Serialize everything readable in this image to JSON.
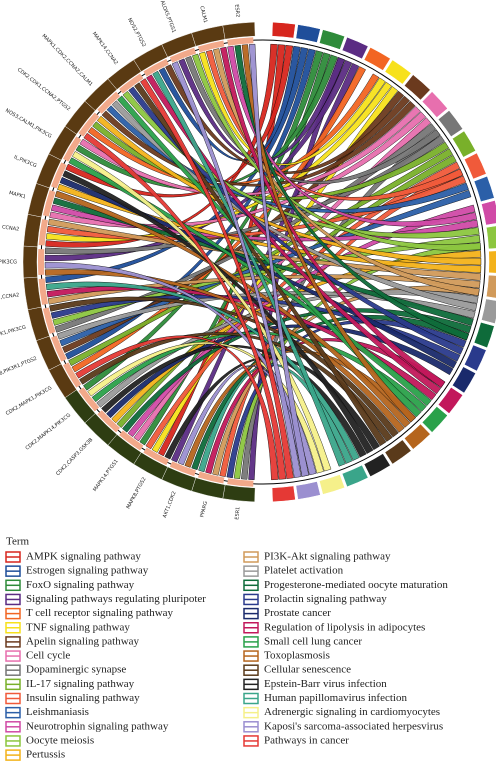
{
  "legend": {
    "title": "Term",
    "items": [
      {
        "label": "AMPK signaling pathway",
        "color": "#d7261e"
      },
      {
        "label": "Estrogen signaling pathway",
        "color": "#1f4e9a"
      },
      {
        "label": "FoxO signaling pathway",
        "color": "#2e8b3a"
      },
      {
        "label": "Signaling pathways regulating pluripoter",
        "color": "#5b2c83"
      },
      {
        "label": "T cell receptor signaling pathway",
        "color": "#f26522"
      },
      {
        "label": "TNF signaling pathway",
        "color": "#f7e11b"
      },
      {
        "label": "Apelin signaling pathway",
        "color": "#6b3a1e"
      },
      {
        "label": "Cell cycle",
        "color": "#e76fae"
      },
      {
        "label": "Dopaminergic synapse",
        "color": "#777777"
      },
      {
        "label": "IL-17 signaling pathway",
        "color": "#79b02a"
      },
      {
        "label": "Insulin signaling pathway",
        "color": "#f05a3a"
      },
      {
        "label": "Leishmaniasis",
        "color": "#2b5fa8"
      },
      {
        "label": "Neurotrophin signaling pathway",
        "color": "#d04aa6"
      },
      {
        "label": "Oocyte meiosis",
        "color": "#8cc63f"
      },
      {
        "label": "Pertussis",
        "color": "#f3b21a"
      },
      {
        "label": "PI3K-Akt signaling pathway",
        "color": "#d19a5a"
      },
      {
        "label": "Platelet activation",
        "color": "#9a9a9a"
      },
      {
        "label": "Progesterone-mediated oocyte maturation",
        "color": "#0e6b3a"
      },
      {
        "label": "Prolactin signaling pathway",
        "color": "#2a3a8c"
      },
      {
        "label": "Prostate cancer",
        "color": "#1a2a6c"
      },
      {
        "label": "Regulation of lipolysis in adipocytes",
        "color": "#c2185b"
      },
      {
        "label": "Small cell lung cancer",
        "color": "#2aa14a"
      },
      {
        "label": "Toxoplasmosis",
        "color": "#b5651d"
      },
      {
        "label": "Cellular senescence",
        "color": "#5a3a1a"
      },
      {
        "label": "Epstein-Barr virus infection",
        "color": "#222222"
      },
      {
        "label": "Human papillomavirus infection",
        "color": "#3aa58a"
      },
      {
        "label": "Adrenergic signaling in cardiomyocytes",
        "color": "#f5f08a"
      },
      {
        "label": "Kaposi's sarcoma-associated herpesvirus",
        "color": "#9b8fd0"
      },
      {
        "label": "Pathways in cancer",
        "color": "#e53935"
      }
    ]
  },
  "genes": [
    "ESR1",
    "PPARG",
    "AKT1,CDK2",
    "MAPK8,PTGS2",
    "MAPK14,PTGS1",
    "CDK2,CASP3,GSK3B",
    "CDK2,MAPK14,PIK3CG",
    "CDK2,MAPK1,PIK3CG",
    "RAF1,MAPK8,PIK3R1,PTGS2",
    "MAPK1,PIK3CG",
    "CDK2,CCNA2",
    "ESR1,PIK3CG",
    "CCNA2",
    "MAPK1",
    "IL,PIK3CG",
    "NOS3,CALM1,PIK3CG",
    "CDK2,CDK1,CCNA2,PTGS2",
    "MAPK1,CDK2,CCNA2,CALM1",
    "MAPK14,CCNA2",
    "NOS2,PTGS2",
    "ALOX5,PTGS1",
    "CALM1",
    "ESR2"
  ]
}
